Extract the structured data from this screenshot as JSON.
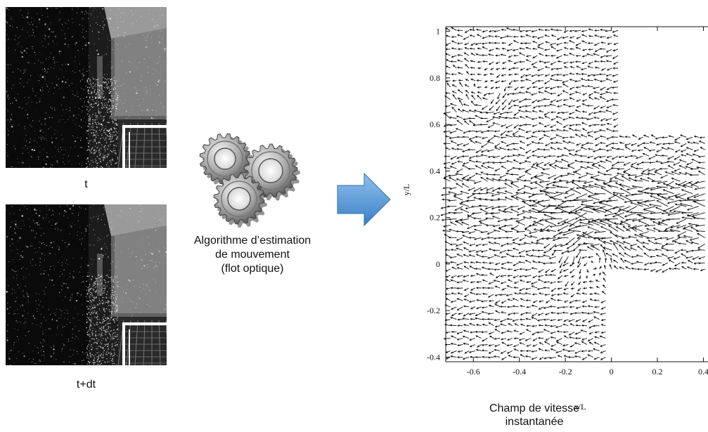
{
  "frames": [
    {
      "label": "t"
    },
    {
      "label": "t+dt"
    }
  ],
  "algorithm": {
    "icon": "gears-icon",
    "lines": [
      "Algorithme d’estimation",
      "de mouvement",
      "(flot optique)"
    ]
  },
  "arrow": {
    "icon": "right-arrow-icon",
    "color": "#4a90d9"
  },
  "result": {
    "caption_lines": [
      "Champ de vitesse",
      "instantanée"
    ]
  },
  "chart_data": {
    "type": "quiver",
    "xlabel": "x/L",
    "ylabel": "y/L",
    "xlim": [
      -0.72,
      0.42
    ],
    "ylim": [
      -0.42,
      1.02
    ],
    "xticks": [
      -0.6,
      -0.4,
      -0.2,
      0,
      0.2,
      0.4
    ],
    "yticks": [
      -0.4,
      -0.2,
      0,
      0.2,
      0.4,
      0.6,
      0.8,
      1
    ],
    "xtick_labels": [
      "-0.6",
      "-0.4",
      "-0.2",
      "0",
      "0.2",
      "0.4"
    ],
    "ytick_labels": [
      "-0.4",
      "-0.2",
      "0",
      "0.2",
      "0.4",
      "0.6",
      "0.8",
      "1"
    ],
    "grid": false
  }
}
